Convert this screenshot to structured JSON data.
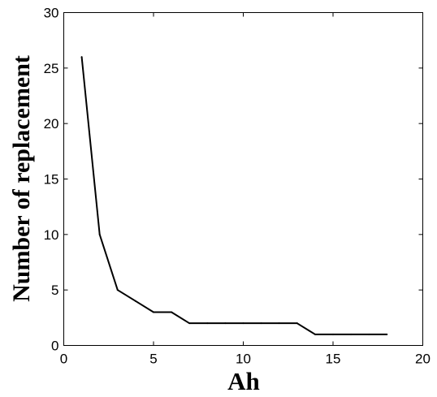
{
  "chart_data": {
    "type": "line",
    "xlabel": "Ah",
    "ylabel": "Number of replacement",
    "xlim": [
      0,
      20
    ],
    "ylim": [
      0,
      30
    ],
    "xticks": [
      0,
      5,
      10,
      15,
      20
    ],
    "yticks": [
      0,
      5,
      10,
      15,
      20,
      25,
      30
    ],
    "grid": false,
    "series": [
      {
        "x": [
          1,
          2,
          3,
          4,
          5,
          6,
          7,
          8,
          9,
          10,
          11,
          12,
          13,
          14,
          15,
          16,
          17,
          18
        ],
        "y": [
          26,
          10,
          5,
          4,
          3,
          3,
          2,
          2,
          2,
          2,
          2,
          2,
          2,
          1,
          1,
          1,
          1,
          1
        ],
        "color": "#000000"
      }
    ]
  }
}
